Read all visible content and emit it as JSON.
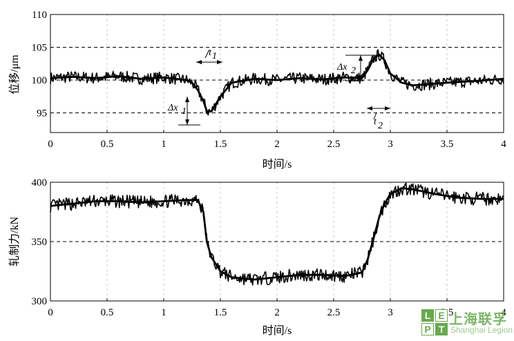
{
  "chart_data": [
    {
      "type": "line",
      "xlabel": "时间/s",
      "ylabel": "位移/μm",
      "xlim": [
        0,
        4
      ],
      "ylim": [
        92,
        110
      ],
      "xticks": [
        "0",
        "0.5",
        "1",
        "1.5",
        "2",
        "2.5",
        "3",
        "3.5",
        "4"
      ],
      "yticks": [
        "95",
        "100",
        "105",
        "110"
      ],
      "dashed_reference_lines": [
        95,
        100,
        105
      ],
      "grid": "vertical dotted",
      "series": [
        {
          "x": [
            0,
            0.2,
            0.4,
            0.6,
            0.8,
            1.0,
            1.2,
            1.25,
            1.3,
            1.35,
            1.38,
            1.42,
            1.5,
            1.6,
            1.8,
            2.0,
            2.2,
            2.4,
            2.6,
            2.75,
            2.8,
            2.85,
            2.9,
            2.95,
            3.0,
            3.1,
            3.2,
            3.5,
            3.8,
            4.0
          ],
          "y": [
            100.3,
            100.5,
            100.3,
            100.6,
            100.2,
            100.4,
            100.0,
            99.6,
            98.5,
            96.8,
            95.3,
            95.2,
            97.5,
            99.6,
            100.2,
            100.0,
            100.3,
            100.1,
            100.4,
            100.3,
            101.5,
            103.2,
            103.9,
            103.0,
            101.0,
            99.6,
            99.2,
            99.6,
            99.9,
            100.2
          ]
        }
      ],
      "annotations": [
        {
          "label": "Δx",
          "sub": "1"
        },
        {
          "label": "t",
          "sub": "1"
        },
        {
          "label": "Δx",
          "sub": "2"
        },
        {
          "label": "t",
          "sub": "2"
        }
      ]
    },
    {
      "type": "line",
      "xlabel": "时间/s",
      "ylabel": "轧制力/kN",
      "xlim": [
        0,
        4
      ],
      "ylim": [
        300,
        400
      ],
      "xticks": [
        "0",
        "0.5",
        "1",
        "1.5",
        "2",
        "2.5",
        "3",
        "3.5",
        "4"
      ],
      "yticks": [
        "300",
        "350",
        "400"
      ],
      "dashed_reference_lines": [
        350,
        400
      ],
      "grid": "vertical dotted",
      "series": [
        {
          "x": [
            0,
            0.2,
            0.4,
            0.6,
            0.8,
            1.0,
            1.2,
            1.3,
            1.35,
            1.38,
            1.42,
            1.5,
            1.6,
            1.8,
            2.0,
            2.2,
            2.4,
            2.6,
            2.75,
            2.8,
            2.85,
            2.9,
            2.95,
            3.0,
            3.1,
            3.2,
            3.4,
            3.6,
            3.8,
            4.0
          ],
          "y": [
            380,
            382,
            384,
            384,
            383,
            384,
            385,
            385,
            375,
            350,
            337,
            325,
            320,
            318,
            320,
            322,
            322,
            321,
            324,
            335,
            352,
            370,
            382,
            390,
            395,
            394,
            390,
            387,
            386,
            386
          ]
        }
      ]
    }
  ],
  "watermark": {
    "letters": [
      "L",
      "E",
      "P",
      "T"
    ],
    "name_cn": "上海联孚",
    "name_en": "Shanghai Legion"
  }
}
